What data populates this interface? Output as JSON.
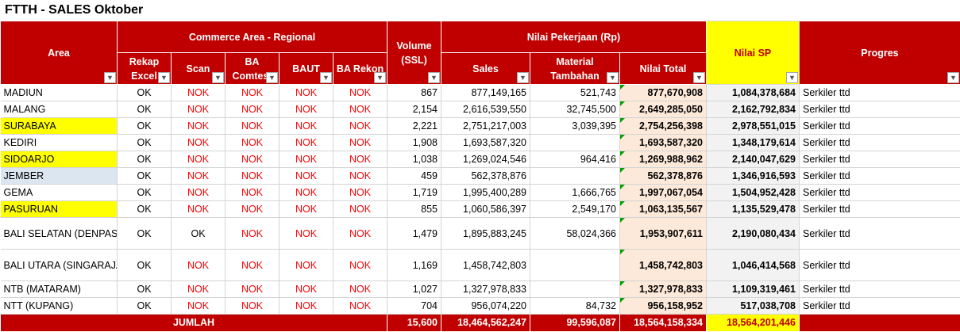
{
  "sheet_title": "FTTH - SALES Oktober",
  "headers": {
    "area": "Area",
    "commerce_group": "Commerce Area - Regional",
    "rekap": "Rekap Excel",
    "scan": "Scan",
    "ba_comtest": "BA Comtest",
    "baut": "BAUT",
    "ba_rekon": "BA Rekon",
    "volume": "Volume (SSL)",
    "nilai_group": "Nilai Pekerjaan (Rp)",
    "sales": "Sales",
    "material": "Material Tambahan",
    "nilai_total": "Nilai Total",
    "nilai_sp": "Nilai SP",
    "progres": "Progres"
  },
  "filter_icon": "chevron-down-icon",
  "colors": {
    "header_red": "#c00000",
    "nok_red": "#ff0000",
    "highlight_yellow": "#ffff00",
    "highlight_blue": "#dce6f1",
    "total_fill": "#fde9d9",
    "sp_fill": "#f2f2f2"
  },
  "rows": [
    {
      "area": "MADIUN",
      "highlight": "",
      "rekap": "OK",
      "scan": "NOK",
      "ba_comtest": "NOK",
      "baut": "NOK",
      "ba_rekon": "NOK",
      "volume": "867",
      "sales": "877,149,165",
      "material": "521,743",
      "nilai_total": "877,670,908",
      "nilai_sp": "1,084,378,684",
      "progres": "Serkiler ttd"
    },
    {
      "area": "MALANG",
      "highlight": "",
      "rekap": "OK",
      "scan": "NOK",
      "ba_comtest": "NOK",
      "baut": "NOK",
      "ba_rekon": "NOK",
      "volume": "2,154",
      "sales": "2,616,539,550",
      "material": "32,745,500",
      "nilai_total": "2,649,285,050",
      "nilai_sp": "2,162,792,834",
      "progres": "Serkiler ttd"
    },
    {
      "area": "SURABAYA",
      "highlight": "yellow",
      "rekap": "OK",
      "scan": "NOK",
      "ba_comtest": "NOK",
      "baut": "NOK",
      "ba_rekon": "NOK",
      "volume": "2,221",
      "sales": "2,751,217,003",
      "material": "3,039,395",
      "nilai_total": "2,754,256,398",
      "nilai_sp": "2,978,551,015",
      "progres": "Serkiler ttd"
    },
    {
      "area": "KEDIRI",
      "highlight": "",
      "rekap": "OK",
      "scan": "NOK",
      "ba_comtest": "NOK",
      "baut": "NOK",
      "ba_rekon": "NOK",
      "volume": "1,908",
      "sales": "1,693,587,320",
      "material": "",
      "nilai_total": "1,693,587,320",
      "nilai_sp": "1,348,179,614",
      "progres": "Serkiler ttd"
    },
    {
      "area": "SIDOARJO",
      "highlight": "yellow",
      "rekap": "OK",
      "scan": "NOK",
      "ba_comtest": "NOK",
      "baut": "NOK",
      "ba_rekon": "NOK",
      "volume": "1,038",
      "sales": "1,269,024,546",
      "material": "964,416",
      "nilai_total": "1,269,988,962",
      "nilai_sp": "2,140,047,629",
      "progres": "Serkiler ttd"
    },
    {
      "area": "JEMBER",
      "highlight": "blue",
      "rekap": "OK",
      "scan": "NOK",
      "ba_comtest": "NOK",
      "baut": "NOK",
      "ba_rekon": "NOK",
      "volume": "459",
      "sales": "562,378,876",
      "material": "",
      "nilai_total": "562,378,876",
      "nilai_sp": "1,346,916,593",
      "progres": "Serkiler ttd"
    },
    {
      "area": "GEMA",
      "highlight": "",
      "rekap": "OK",
      "scan": "NOK",
      "ba_comtest": "NOK",
      "baut": "NOK",
      "ba_rekon": "NOK",
      "volume": "1,719",
      "sales": "1,995,400,289",
      "material": "1,666,765",
      "nilai_total": "1,997,067,054",
      "nilai_sp": "1,504,952,428",
      "progres": "Serkiler ttd"
    },
    {
      "area": "PASURUAN",
      "highlight": "yellow",
      "rekap": "OK",
      "scan": "NOK",
      "ba_comtest": "NOK",
      "baut": "NOK",
      "ba_rekon": "NOK",
      "volume": "855",
      "sales": "1,060,586,397",
      "material": "2,549,170",
      "nilai_total": "1,063,135,567",
      "nilai_sp": "1,135,529,478",
      "progres": "Serkiler ttd"
    },
    {
      "area": "BALI SELATAN (DENPASAR)",
      "highlight": "",
      "tall": true,
      "rekap": "OK",
      "scan": "OK",
      "ba_comtest": "NOK",
      "baut": "NOK",
      "ba_rekon": "NOK",
      "volume": "1,479",
      "sales": "1,895,883,245",
      "material": "58,024,366",
      "nilai_total": "1,953,907,611",
      "nilai_sp": "2,190,080,434",
      "progres": "Serkiler ttd"
    },
    {
      "area": "BALI UTARA (SINGARAJA)",
      "highlight": "",
      "tall": true,
      "rekap": "OK",
      "scan": "NOK",
      "ba_comtest": "NOK",
      "baut": "NOK",
      "ba_rekon": "NOK",
      "volume": "1,169",
      "sales": "1,458,742,803",
      "material": "",
      "nilai_total": "1,458,742,803",
      "nilai_sp": "1,046,414,568",
      "progres": "Serkiler ttd"
    },
    {
      "area": "NTB (MATARAM)",
      "highlight": "",
      "rekap": "OK",
      "scan": "NOK",
      "ba_comtest": "NOK",
      "baut": "NOK",
      "ba_rekon": "NOK",
      "volume": "1,027",
      "sales": "1,327,978,833",
      "material": "",
      "nilai_total": "1,327,978,833",
      "nilai_sp": "1,109,319,461",
      "progres": "Serkiler ttd"
    },
    {
      "area": "NTT  (KUPANG)",
      "highlight": "",
      "rekap": "OK",
      "scan": "NOK",
      "ba_comtest": "NOK",
      "baut": "NOK",
      "ba_rekon": "NOK",
      "volume": "704",
      "sales": "956,074,220",
      "material": "84,732",
      "nilai_total": "956,158,952",
      "nilai_sp": "517,038,708",
      "progres": "Serkiler ttd"
    }
  ],
  "totals": {
    "label": "JUMLAH",
    "volume": "15,600",
    "sales": "18,464,562,247",
    "material": "99,596,087",
    "nilai_total": "18,564,158,334",
    "nilai_sp": "18,564,201,446"
  }
}
